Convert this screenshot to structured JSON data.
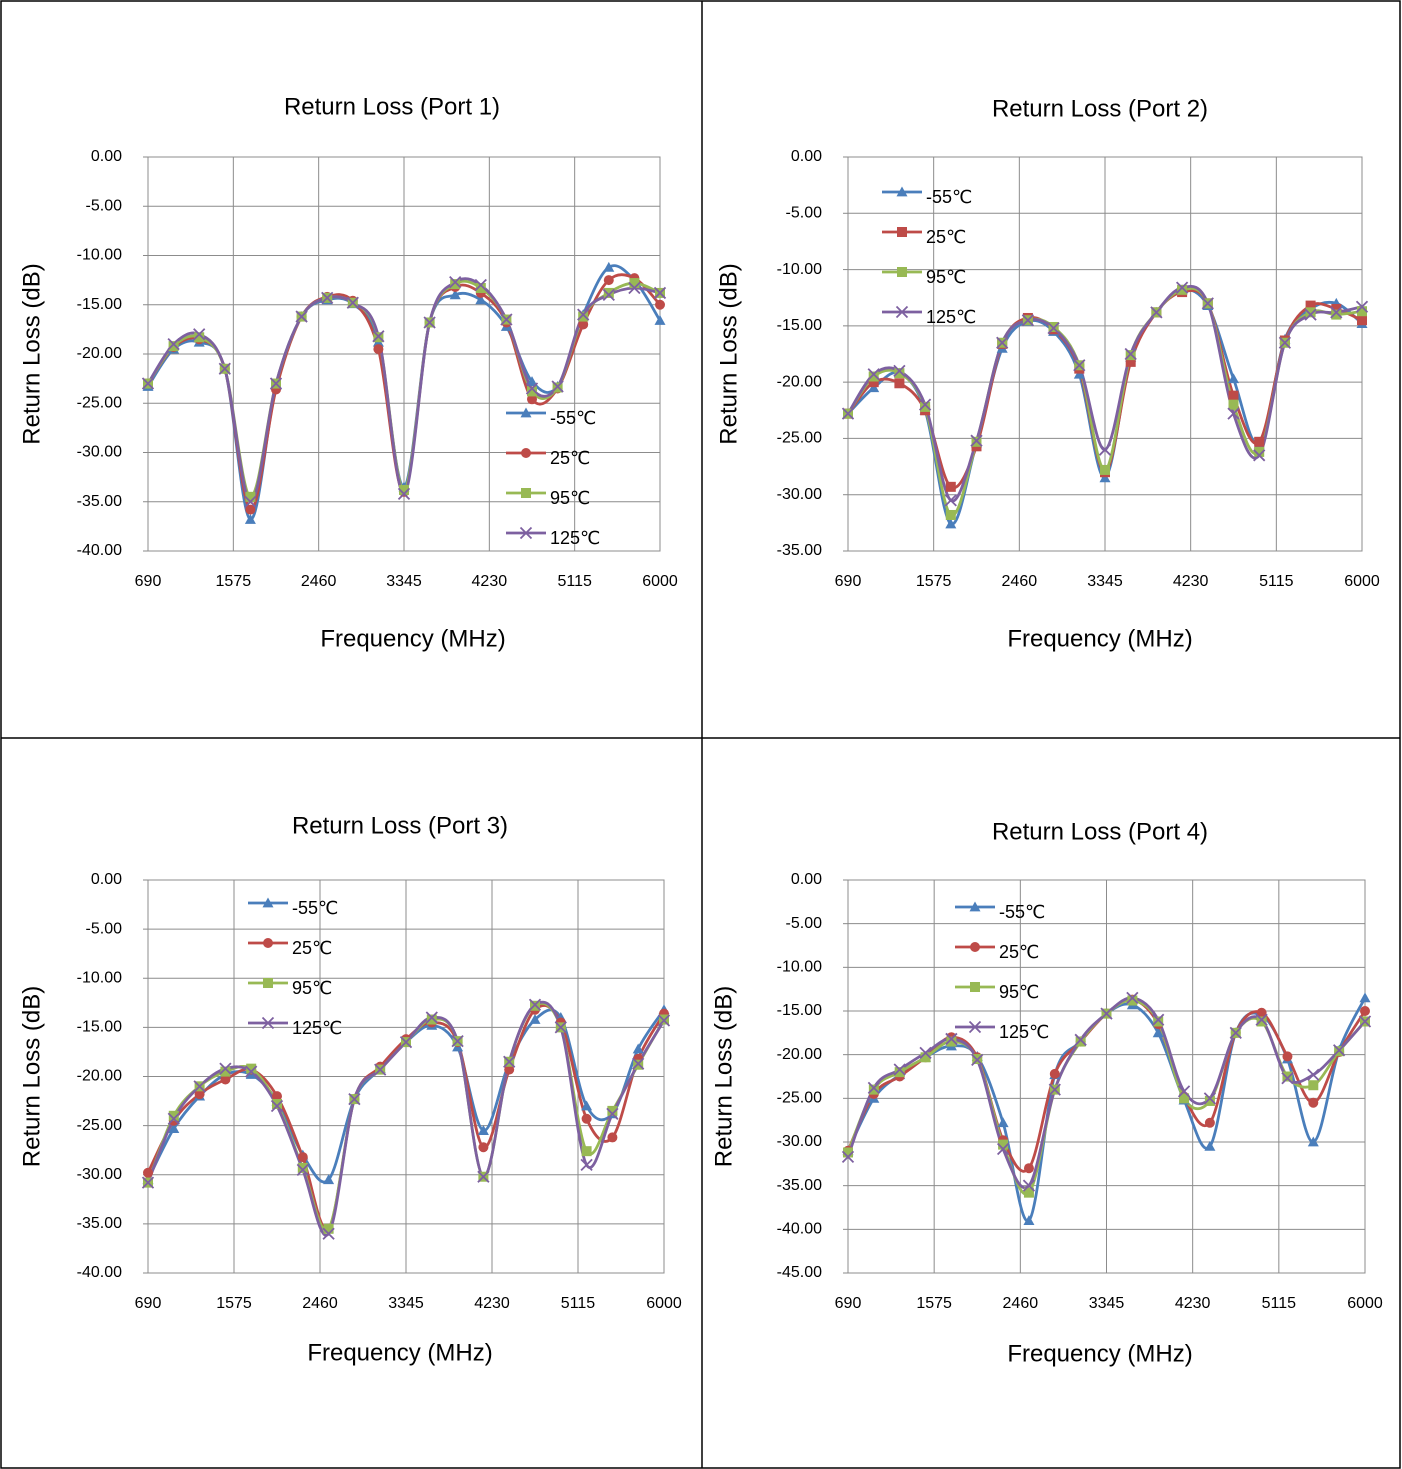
{
  "chart_data": [
    {
      "type": "line",
      "title": "Return Loss (Port 1)",
      "xlabel": "Frequency (MHz)",
      "ylabel": "Return Loss (dB)",
      "legend": "lower right",
      "grid": true,
      "x": [
        690,
        955.5,
        1221,
        1486.5,
        1752,
        2017.5,
        2283,
        2548.5,
        2814,
        3079.5,
        3345,
        3610.5,
        3876,
        4141.5,
        4407,
        4672.5,
        4938,
        5203.5,
        5469,
        5734.5,
        6000
      ],
      "xlim": [
        690,
        6000
      ],
      "xticks": [
        690,
        1575,
        2460,
        3345,
        4230,
        5115,
        6000
      ],
      "ylim": [
        -40,
        0
      ],
      "yticks": [
        {
          "value": 0,
          "label": "0.00"
        },
        {
          "value": -5,
          "label": "-5.00"
        },
        {
          "value": -10,
          "label": "-10.00"
        },
        {
          "value": -15,
          "label": "-15.00"
        },
        {
          "value": -20,
          "label": "-20.00"
        },
        {
          "value": -25,
          "label": "-25.00"
        },
        {
          "value": -30,
          "label": "-30.00"
        },
        {
          "value": -35,
          "label": "-35.00"
        },
        {
          "value": -40,
          "label": "-40.00"
        }
      ],
      "series": [
        {
          "name": "-55℃",
          "color": "#4a7ebb",
          "marker": "triangle",
          "values": [
            -23.3,
            -19.5,
            -18.8,
            -21.5,
            -36.8,
            -23.2,
            -16.2,
            -14.5,
            -14.9,
            -18.8,
            -33.5,
            -16.8,
            -14,
            -14.5,
            -17.2,
            -22.8,
            -23.3,
            -16,
            -11.2,
            -12.5,
            -16.6
          ]
        },
        {
          "name": "25℃",
          "color": "#be4b48",
          "marker": "circle",
          "values": [
            -23,
            -19.3,
            -18.5,
            -21.5,
            -35.8,
            -23.6,
            -16.2,
            -14.2,
            -14.6,
            -19.5,
            -34,
            -16.8,
            -13.2,
            -13.8,
            -16.8,
            -24.6,
            -23.5,
            -17,
            -12.5,
            -12.3,
            -15
          ]
        },
        {
          "name": "95℃",
          "color": "#98b954",
          "marker": "square",
          "values": [
            -23,
            -19.2,
            -18.3,
            -21.5,
            -34.5,
            -23,
            -16.2,
            -14.3,
            -14.8,
            -18.3,
            -33.8,
            -16.8,
            -12.9,
            -13.3,
            -16.5,
            -23.8,
            -23.4,
            -16.2,
            -13.8,
            -12.8,
            -13.8
          ]
        },
        {
          "name": "125℃",
          "color": "#7d60a0",
          "marker": "x",
          "values": [
            -23,
            -19,
            -18,
            -21.5,
            -35,
            -23,
            -16.2,
            -14.3,
            -14.8,
            -18.2,
            -34.2,
            -16.8,
            -12.7,
            -13,
            -16.5,
            -23.5,
            -23.3,
            -16,
            -14,
            -13.3,
            -13.8
          ]
        }
      ]
    },
    {
      "type": "line",
      "title": "Return Loss (Port 2)",
      "xlabel": "Frequency (MHz)",
      "ylabel": "Return Loss (dB)",
      "legend": "upper left",
      "grid": true,
      "x": [
        690,
        955.5,
        1221,
        1486.5,
        1752,
        2017.5,
        2283,
        2548.5,
        2814,
        3079.5,
        3345,
        3610.5,
        3876,
        4141.5,
        4407,
        4672.5,
        4938,
        5203.5,
        5469,
        5734.5,
        6000
      ],
      "xlim": [
        690,
        6000
      ],
      "xticks": [
        690,
        1575,
        2460,
        3345,
        4230,
        5115,
        6000
      ],
      "ylim": [
        -35,
        0
      ],
      "yticks": [
        {
          "value": 0,
          "label": "0.00"
        },
        {
          "value": -5,
          "label": "-5.00"
        },
        {
          "value": -10,
          "label": "-10.00"
        },
        {
          "value": -15,
          "label": "-15.00"
        },
        {
          "value": -20,
          "label": "-20.00"
        },
        {
          "value": -25,
          "label": "-25.00"
        },
        {
          "value": -30,
          "label": "-30.00"
        },
        {
          "value": -35,
          "label": "-35.00"
        }
      ],
      "series": [
        {
          "name": "-55℃",
          "color": "#4a7ebb",
          "marker": "triangle",
          "values": [
            -22.8,
            -20.5,
            -19.2,
            -22.5,
            -32.6,
            -25.4,
            -17,
            -14.6,
            -15.5,
            -19.3,
            -28.5,
            -17.8,
            -13.8,
            -11.8,
            -13.2,
            -19.7,
            -25.5,
            -16.2,
            -13.5,
            -13,
            -14.8
          ]
        },
        {
          "name": "25℃",
          "color": "#be4b48",
          "marker": "square",
          "values": [
            -22.8,
            -20,
            -20.1,
            -22.5,
            -29.3,
            -25.7,
            -16.6,
            -14.3,
            -15.3,
            -18.8,
            -28,
            -18.2,
            -13.8,
            -12,
            -13,
            -21.2,
            -25.3,
            -16.3,
            -13.2,
            -13.5,
            -14.5
          ]
        },
        {
          "name": "95℃",
          "color": "#98b954",
          "marker": "square",
          "values": [
            -22.8,
            -19.5,
            -19.2,
            -22.2,
            -31.8,
            -25.3,
            -16.5,
            -14.5,
            -15.1,
            -18.5,
            -27.8,
            -17.6,
            -13.8,
            -11.8,
            -13,
            -22,
            -26.2,
            -16.5,
            -13.8,
            -14,
            -13.7
          ]
        },
        {
          "name": "125℃",
          "color": "#7d60a0",
          "marker": "x",
          "values": [
            -22.8,
            -19.3,
            -19,
            -22,
            -30.5,
            -25.2,
            -16.5,
            -14.5,
            -15.2,
            -18.5,
            -26,
            -17.5,
            -13.8,
            -11.6,
            -13,
            -22.8,
            -26.5,
            -16.5,
            -14,
            -13.8,
            -13.3
          ]
        }
      ]
    },
    {
      "type": "line",
      "title": "Return Loss (Port 3)",
      "xlabel": "Frequency (MHz)",
      "ylabel": "Return Loss (dB)",
      "legend": "upper left",
      "grid": true,
      "x": [
        690,
        955.5,
        1221,
        1486.5,
        1752,
        2017.5,
        2283,
        2548.5,
        2814,
        3079.5,
        3345,
        3610.5,
        3876,
        4141.5,
        4407,
        4672.5,
        4938,
        5203.5,
        5469,
        5734.5,
        6000
      ],
      "xlim": [
        690,
        6000
      ],
      "xticks": [
        690,
        1575,
        2460,
        3345,
        4230,
        5115,
        6000
      ],
      "ylim": [
        -40,
        0
      ],
      "yticks": [
        {
          "value": 0,
          "label": "0.00"
        },
        {
          "value": -5,
          "label": "-5.00"
        },
        {
          "value": -10,
          "label": "-10.00"
        },
        {
          "value": -15,
          "label": "-15.00"
        },
        {
          "value": -20,
          "label": "-20.00"
        },
        {
          "value": -25,
          "label": "-25.00"
        },
        {
          "value": -30,
          "label": "-30.00"
        },
        {
          "value": -35,
          "label": "-35.00"
        },
        {
          "value": -40,
          "label": "-40.00"
        }
      ],
      "series": [
        {
          "name": "-55℃",
          "color": "#4a7ebb",
          "marker": "triangle",
          "values": [
            -30.5,
            -25.3,
            -22,
            -19.8,
            -19.8,
            -22.5,
            -28,
            -30.5,
            -22.3,
            -19.2,
            -16.5,
            -14.8,
            -17,
            -25.5,
            -18.6,
            -14.2,
            -14,
            -23,
            -23.8,
            -17.2,
            -13.2
          ]
        },
        {
          "name": "25℃",
          "color": "#be4b48",
          "marker": "circle",
          "values": [
            -29.8,
            -24.5,
            -21.8,
            -20.3,
            -19.3,
            -22,
            -28.2,
            -35.5,
            -22.3,
            -19,
            -16.2,
            -14.5,
            -16.5,
            -27.2,
            -19.3,
            -13.2,
            -14.5,
            -24.3,
            -26.2,
            -18.2,
            -13.6
          ]
        },
        {
          "name": "95℃",
          "color": "#98b954",
          "marker": "square",
          "values": [
            -30.8,
            -24,
            -21,
            -19.5,
            -19.2,
            -22.8,
            -29.3,
            -35.5,
            -22.3,
            -19.3,
            -16.5,
            -14.2,
            -16.4,
            -30.2,
            -18.5,
            -12.8,
            -15,
            -27.6,
            -23.5,
            -18.8,
            -14.2
          ]
        },
        {
          "name": "125℃",
          "color": "#7d60a0",
          "marker": "x",
          "values": [
            -30.8,
            -24.3,
            -21,
            -19.2,
            -19.5,
            -23,
            -29.5,
            -36,
            -22.3,
            -19.3,
            -16.5,
            -14,
            -16.4,
            -30.2,
            -18.5,
            -12.7,
            -15,
            -29,
            -23.8,
            -18.7,
            -14.3
          ]
        }
      ]
    },
    {
      "type": "line",
      "title": "Return Loss (Port 4)",
      "xlabel": "Frequency (MHz)",
      "ylabel": "Return Loss (dB)",
      "legend": "upper left",
      "grid": true,
      "x": [
        690,
        955.5,
        1221,
        1486.5,
        1752,
        2017.5,
        2283,
        2548.5,
        2814,
        3079.5,
        3345,
        3610.5,
        3876,
        4141.5,
        4407,
        4672.5,
        4938,
        5203.5,
        5469,
        5734.5,
        6000
      ],
      "xlim": [
        690,
        6000
      ],
      "xticks": [
        690,
        1575,
        2460,
        3345,
        4230,
        5115,
        6000
      ],
      "ylim": [
        -45,
        0
      ],
      "yticks": [
        {
          "value": 0,
          "label": "0.00"
        },
        {
          "value": -5,
          "label": "-5.00"
        },
        {
          "value": -10,
          "label": "-10.00"
        },
        {
          "value": -15,
          "label": "-15.00"
        },
        {
          "value": -20,
          "label": "-20.00"
        },
        {
          "value": -25,
          "label": "-25.00"
        },
        {
          "value": -30,
          "label": "-30.00"
        },
        {
          "value": -35,
          "label": "-35.00"
        },
        {
          "value": -40,
          "label": "-40.00"
        },
        {
          "value": -45,
          "label": "-45.00"
        }
      ],
      "series": [
        {
          "name": "-55℃",
          "color": "#4a7ebb",
          "marker": "triangle",
          "values": [
            -31,
            -25,
            -22.3,
            -20.3,
            -19,
            -20.2,
            -27.8,
            -39,
            -22.3,
            -18.5,
            -15.3,
            -14.3,
            -17.5,
            -25.2,
            -30.5,
            -17.5,
            -15.5,
            -20.5,
            -30,
            -19.5,
            -13.5
          ]
        },
        {
          "name": "25℃",
          "color": "#be4b48",
          "marker": "circle",
          "values": [
            -31,
            -24.5,
            -22.5,
            -20.3,
            -18,
            -20.3,
            -29.8,
            -33,
            -22.2,
            -18.5,
            -15.3,
            -13.7,
            -16.5,
            -24.8,
            -27.8,
            -17.5,
            -15.2,
            -20.2,
            -25.5,
            -19.7,
            -15
          ]
        },
        {
          "name": "95℃",
          "color": "#98b954",
          "marker": "square",
          "values": [
            -31.2,
            -24,
            -22,
            -20.3,
            -18.5,
            -20.5,
            -30.3,
            -35.8,
            -24,
            -18.5,
            -15.3,
            -13.8,
            -16.2,
            -25,
            -25.3,
            -17.5,
            -16.2,
            -22.5,
            -23.5,
            -19.6,
            -16.2
          ]
        },
        {
          "name": "125℃",
          "color": "#7d60a0",
          "marker": "x",
          "values": [
            -31.7,
            -23.8,
            -21.7,
            -19.8,
            -18.2,
            -20.6,
            -30.8,
            -35,
            -24,
            -18.3,
            -15.3,
            -13.5,
            -16,
            -24.2,
            -25,
            -17.5,
            -16,
            -22.7,
            -22.3,
            -19.5,
            -16.2
          ]
        }
      ]
    }
  ]
}
